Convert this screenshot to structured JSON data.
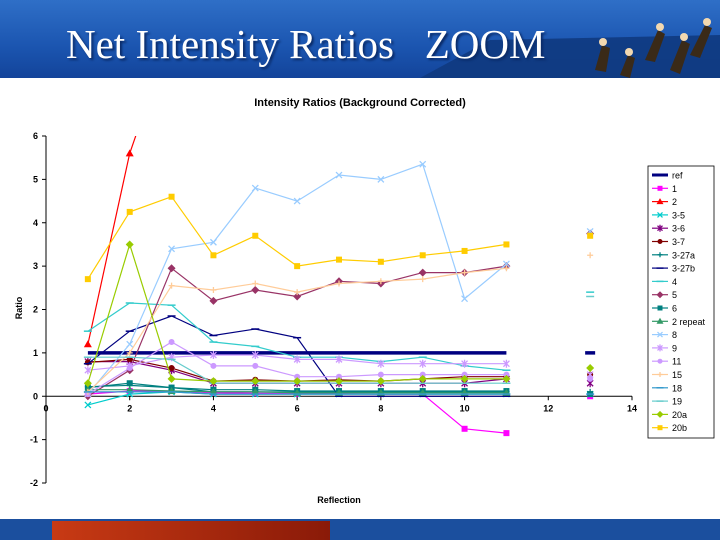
{
  "slide": {
    "title": "Net Intensity Ratios   ZOOM"
  },
  "colors": {
    "header": "#1b55b0",
    "footer_accent": "#c83a14",
    "title_text": "#ffffff"
  },
  "chart_data": {
    "type": "line",
    "title": "Intensity Ratios (Background Corrected)",
    "xlabel": "Reflection",
    "ylabel": "Ratio",
    "xlim": [
      0,
      14
    ],
    "ylim": [
      -2,
      6
    ],
    "xticks": [
      0,
      2,
      4,
      6,
      8,
      10,
      12,
      14
    ],
    "yticks": [
      -2,
      -1,
      0,
      1,
      2,
      3,
      4,
      5,
      6
    ],
    "grid": false,
    "legend_position": "right",
    "series": [
      {
        "name": "ref",
        "color": "#000080",
        "marker": "none",
        "width": 3.5,
        "points": [
          [
            1,
            1
          ],
          [
            2,
            1
          ],
          [
            3,
            1
          ],
          [
            4,
            1
          ],
          [
            5,
            1
          ],
          [
            6,
            1
          ],
          [
            7,
            1
          ],
          [
            8,
            1
          ],
          [
            9,
            1
          ],
          [
            10,
            1
          ],
          [
            11,
            1
          ],
          [
            13,
            1
          ]
        ]
      },
      {
        "name": "1",
        "color": "#ff00ff",
        "marker": "square",
        "points": [
          [
            1,
            0.05
          ],
          [
            2,
            0.12
          ],
          [
            3,
            0.12
          ],
          [
            4,
            0.08
          ],
          [
            5,
            0.07
          ],
          [
            6,
            0.06
          ],
          [
            7,
            0.06
          ],
          [
            8,
            0.05
          ],
          [
            9,
            0.05
          ],
          [
            10,
            -0.75
          ],
          [
            11,
            -0.85
          ],
          [
            13,
            0.0
          ]
        ]
      },
      {
        "name": "2",
        "color": "#ff0000",
        "marker": "triangle",
        "points": [
          [
            1,
            1.2
          ],
          [
            2,
            5.6
          ],
          [
            2.25,
            6.3
          ]
        ]
      },
      {
        "name": "3-5",
        "color": "#00cccc",
        "marker": "x",
        "points": [
          [
            1,
            -0.2
          ],
          [
            2,
            0.05
          ],
          [
            3,
            0.1
          ],
          [
            4,
            0.05
          ],
          [
            5,
            0.05
          ],
          [
            6,
            0.05
          ],
          [
            7,
            0.05
          ],
          [
            8,
            0.05
          ],
          [
            9,
            0.05
          ],
          [
            10,
            0.05
          ],
          [
            11,
            0.05
          ],
          [
            13,
            0.05
          ]
        ]
      },
      {
        "name": "3-6",
        "color": "#800080",
        "marker": "star",
        "points": [
          [
            1,
            0.8
          ],
          [
            2,
            0.8
          ],
          [
            3,
            0.6
          ],
          [
            4,
            0.3
          ],
          [
            5,
            0.3
          ],
          [
            6,
            0.3
          ],
          [
            7,
            0.3
          ],
          [
            8,
            0.3
          ],
          [
            9,
            0.3
          ],
          [
            10,
            0.3
          ],
          [
            11,
            0.4
          ],
          [
            13,
            0.3
          ]
        ]
      },
      {
        "name": "3-7",
        "color": "#800000",
        "marker": "circle",
        "points": [
          [
            1,
            0.78
          ],
          [
            2,
            0.85
          ],
          [
            3,
            0.65
          ],
          [
            4,
            0.35
          ],
          [
            5,
            0.38
          ],
          [
            6,
            0.35
          ],
          [
            7,
            0.38
          ],
          [
            8,
            0.35
          ],
          [
            9,
            0.4
          ],
          [
            10,
            0.45
          ],
          [
            11,
            0.45
          ],
          [
            13,
            0.5
          ]
        ]
      },
      {
        "name": "3-27a",
        "color": "#008080",
        "marker": "plus",
        "points": [
          [
            1,
            0.22
          ],
          [
            2,
            0.25
          ],
          [
            3,
            0.2
          ],
          [
            4,
            0.1
          ],
          [
            5,
            0.1
          ],
          [
            6,
            0.1
          ],
          [
            7,
            0.1
          ],
          [
            8,
            0.1
          ],
          [
            9,
            0.1
          ],
          [
            10,
            0.1
          ],
          [
            11,
            0.1
          ],
          [
            13,
            0.1
          ]
        ]
      },
      {
        "name": "3-27b",
        "color": "#000080",
        "marker": "dash",
        "points": [
          [
            1,
            0.75
          ],
          [
            2,
            1.5
          ],
          [
            3,
            1.85
          ],
          [
            4,
            1.4
          ],
          [
            5,
            1.55
          ],
          [
            6,
            1.35
          ],
          [
            7,
            0.0
          ],
          [
            8,
            0.0
          ],
          [
            9,
            0.0
          ],
          [
            10,
            0.0
          ],
          [
            11,
            0.0
          ]
        ]
      },
      {
        "name": "4",
        "color": "#33cccc",
        "marker": "dash",
        "points": [
          [
            1,
            1.5
          ],
          [
            2,
            2.15
          ],
          [
            3,
            2.1
          ],
          [
            4,
            1.25
          ],
          [
            5,
            1.15
          ],
          [
            6,
            0.9
          ],
          [
            7,
            0.9
          ],
          [
            8,
            0.8
          ],
          [
            9,
            0.9
          ],
          [
            10,
            0.7
          ],
          [
            11,
            0.6
          ],
          [
            13,
            2.4
          ]
        ]
      },
      {
        "name": "5",
        "color": "#993366",
        "marker": "diamond",
        "points": [
          [
            1,
            0.0
          ],
          [
            2,
            0.6
          ],
          [
            3,
            2.95
          ],
          [
            4,
            2.2
          ],
          [
            5,
            2.45
          ],
          [
            6,
            2.3
          ],
          [
            7,
            2.65
          ],
          [
            8,
            2.6
          ],
          [
            9,
            2.85
          ],
          [
            10,
            2.85
          ],
          [
            11,
            3.0
          ],
          [
            13,
            3.75
          ]
        ]
      },
      {
        "name": "6",
        "color": "#008080",
        "marker": "square",
        "points": [
          [
            1,
            0.2
          ],
          [
            2,
            0.3
          ],
          [
            3,
            0.2
          ],
          [
            4,
            0.15
          ],
          [
            5,
            0.15
          ],
          [
            6,
            0.12
          ],
          [
            7,
            0.12
          ],
          [
            8,
            0.12
          ],
          [
            9,
            0.12
          ],
          [
            10,
            0.12
          ],
          [
            11,
            0.12
          ],
          [
            13,
            0.05
          ]
        ]
      },
      {
        "name": "2 repeat",
        "color": "#339966",
        "marker": "triangle",
        "points": [
          [
            1,
            0.15
          ],
          [
            2,
            0.15
          ],
          [
            3,
            0.12
          ],
          [
            4,
            0.1
          ],
          [
            5,
            0.1
          ],
          [
            6,
            0.08
          ],
          [
            7,
            0.08
          ],
          [
            8,
            0.08
          ],
          [
            9,
            0.08
          ],
          [
            10,
            0.08
          ],
          [
            11,
            0.08
          ]
        ]
      },
      {
        "name": "8",
        "color": "#99ccff",
        "marker": "x",
        "points": [
          [
            1,
            0.05
          ],
          [
            2,
            1.2
          ],
          [
            3,
            3.4
          ],
          [
            4,
            3.55
          ],
          [
            5,
            4.8
          ],
          [
            6,
            4.5
          ],
          [
            7,
            5.1
          ],
          [
            8,
            5.0
          ],
          [
            9,
            5.35
          ],
          [
            10,
            2.25
          ],
          [
            11,
            3.05
          ],
          [
            13,
            3.8
          ]
        ]
      },
      {
        "name": "9",
        "color": "#cc99ff",
        "marker": "star",
        "points": [
          [
            1,
            0.6
          ],
          [
            2,
            0.7
          ],
          [
            3,
            0.9
          ],
          [
            4,
            0.95
          ],
          [
            5,
            0.95
          ],
          [
            6,
            0.85
          ],
          [
            7,
            0.85
          ],
          [
            8,
            0.75
          ],
          [
            9,
            0.75
          ],
          [
            10,
            0.75
          ],
          [
            11,
            0.75
          ],
          [
            13,
            0.5
          ]
        ]
      },
      {
        "name": "11",
        "color": "#cc99ff",
        "marker": "circle",
        "points": [
          [
            1,
            0.05
          ],
          [
            2,
            0.65
          ],
          [
            3,
            1.25
          ],
          [
            4,
            0.7
          ],
          [
            5,
            0.7
          ],
          [
            6,
            0.45
          ],
          [
            7,
            0.45
          ],
          [
            8,
            0.5
          ],
          [
            9,
            0.5
          ],
          [
            10,
            0.5
          ],
          [
            11,
            0.5
          ],
          [
            13,
            0.4
          ]
        ]
      },
      {
        "name": "15",
        "color": "#ffcc99",
        "marker": "plus",
        "points": [
          [
            1,
            0.1
          ],
          [
            2,
            1.0
          ],
          [
            3,
            2.55
          ],
          [
            4,
            2.45
          ],
          [
            5,
            2.6
          ],
          [
            6,
            2.4
          ],
          [
            7,
            2.6
          ],
          [
            8,
            2.65
          ],
          [
            9,
            2.7
          ],
          [
            10,
            2.85
          ],
          [
            11,
            2.95
          ],
          [
            13,
            3.25
          ]
        ]
      },
      {
        "name": "18",
        "color": "#3399cc",
        "marker": "dash",
        "points": [
          [
            1,
            0.1
          ],
          [
            2,
            0.1
          ],
          [
            3,
            0.1
          ],
          [
            4,
            0.05
          ],
          [
            5,
            0.05
          ],
          [
            6,
            0.05
          ],
          [
            7,
            0.05
          ],
          [
            8,
            0.05
          ],
          [
            9,
            0.05
          ],
          [
            10,
            0.05
          ],
          [
            11,
            0.05
          ],
          [
            13,
            0.05
          ]
        ]
      },
      {
        "name": "19",
        "color": "#66cccc",
        "marker": "dash",
        "points": [
          [
            1,
            0.9
          ],
          [
            2,
            0.9
          ],
          [
            3,
            0.85
          ],
          [
            4,
            0.3
          ],
          [
            5,
            0.3
          ],
          [
            6,
            0.3
          ],
          [
            7,
            0.3
          ],
          [
            8,
            0.3
          ],
          [
            9,
            0.3
          ],
          [
            10,
            0.3
          ],
          [
            11,
            0.3
          ],
          [
            13,
            2.3
          ]
        ]
      },
      {
        "name": "20a",
        "color": "#99cc00",
        "marker": "diamond",
        "points": [
          [
            1,
            0.3
          ],
          [
            2,
            3.5
          ],
          [
            3,
            0.4
          ],
          [
            4,
            0.35
          ],
          [
            5,
            0.35
          ],
          [
            6,
            0.35
          ],
          [
            7,
            0.35
          ],
          [
            8,
            0.35
          ],
          [
            9,
            0.4
          ],
          [
            10,
            0.4
          ],
          [
            11,
            0.4
          ],
          [
            13,
            0.65
          ]
        ]
      },
      {
        "name": "20b",
        "color": "#ffcc00",
        "marker": "square",
        "points": [
          [
            1,
            2.7
          ],
          [
            2,
            4.25
          ],
          [
            3,
            4.6
          ],
          [
            4,
            3.25
          ],
          [
            5,
            3.7
          ],
          [
            6,
            3.0
          ],
          [
            7,
            3.15
          ],
          [
            8,
            3.1
          ],
          [
            9,
            3.25
          ],
          [
            10,
            3.35
          ],
          [
            11,
            3.5
          ],
          [
            13,
            3.7
          ]
        ]
      }
    ]
  }
}
